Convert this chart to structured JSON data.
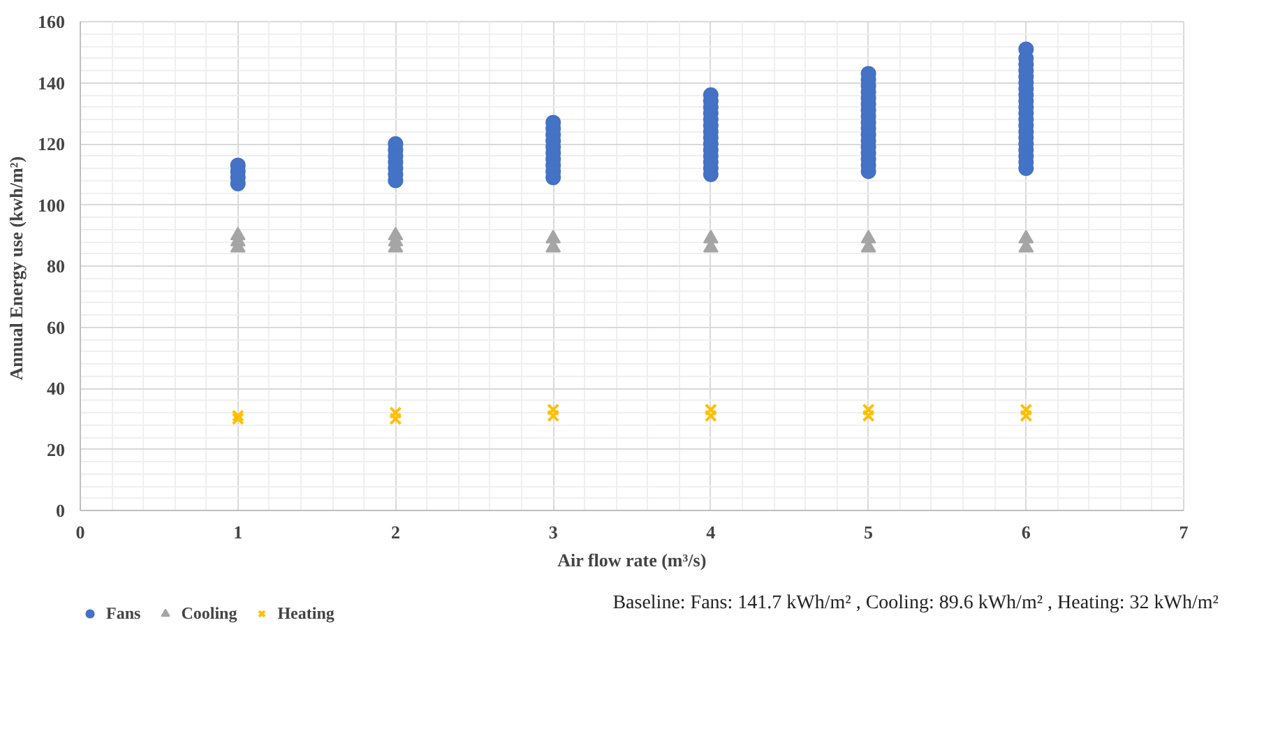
{
  "chart_data": {
    "type": "scatter",
    "xlabel": "Air flow rate (m³/s)",
    "ylabel": "Annual  Energy use (kwh/m²)",
    "xlim": [
      0,
      7
    ],
    "xticks": [
      0,
      1,
      2,
      3,
      4,
      5,
      6,
      7
    ],
    "ylim": [
      0,
      160
    ],
    "yticks": [
      0,
      20,
      40,
      60,
      80,
      100,
      120,
      140,
      160
    ],
    "grid": true,
    "legend": "bottom",
    "annotations": [
      "Baseline:  Fans: 141.7 kWh/m² , Cooling: 89.6 kWh/m² , Heating: 32 kWh/m²"
    ],
    "series": [
      {
        "name": "Fans",
        "color": "#4472c4",
        "marker": "circle",
        "x": [
          1,
          1,
          1,
          1,
          2,
          2,
          2,
          2,
          2,
          2,
          2,
          3,
          3,
          3,
          3,
          3,
          3,
          3,
          3,
          3,
          3,
          4,
          4,
          4,
          4,
          4,
          4,
          4,
          4,
          4,
          4,
          4,
          4,
          4,
          4,
          5,
          5,
          5,
          5,
          5,
          5,
          5,
          5,
          5,
          5,
          5,
          5,
          5,
          5,
          5,
          5,
          5,
          6,
          6,
          6,
          6,
          6,
          6,
          6,
          6,
          6,
          6,
          6,
          6,
          6,
          6,
          6,
          6,
          6,
          6,
          6,
          6
        ],
        "values": [
          107,
          109,
          111,
          113,
          108,
          110,
          112,
          114,
          116,
          118,
          120,
          109,
          111,
          113,
          115,
          117,
          119,
          121,
          123,
          125,
          127,
          110,
          112,
          114,
          116,
          118,
          120,
          122,
          124,
          126,
          128,
          130,
          132,
          134,
          136,
          111,
          113,
          115,
          117,
          119,
          121,
          123,
          125,
          127,
          129,
          131,
          133,
          135,
          137,
          139,
          141,
          143,
          112,
          114,
          116,
          118,
          120,
          122,
          124,
          126,
          128,
          130,
          132,
          134,
          136,
          138,
          140,
          142,
          144,
          146,
          148,
          151
        ]
      },
      {
        "name": "Cooling",
        "color": "#a5a5a5",
        "marker": "triangle",
        "x": [
          1,
          1,
          1,
          2,
          2,
          2,
          3,
          3,
          4,
          4,
          5,
          5,
          6,
          6
        ],
        "values": [
          86,
          88,
          90,
          86,
          88,
          90,
          86,
          89,
          86,
          89,
          86,
          89,
          86,
          89
        ]
      },
      {
        "name": "Heating",
        "color": "#ffc000",
        "marker": "cross",
        "x": [
          1,
          1,
          2,
          2,
          3,
          3,
          4,
          4,
          5,
          5,
          6,
          6
        ],
        "values": [
          30,
          31,
          30,
          32,
          31,
          33,
          31,
          33,
          31,
          33,
          31,
          33
        ]
      }
    ]
  }
}
